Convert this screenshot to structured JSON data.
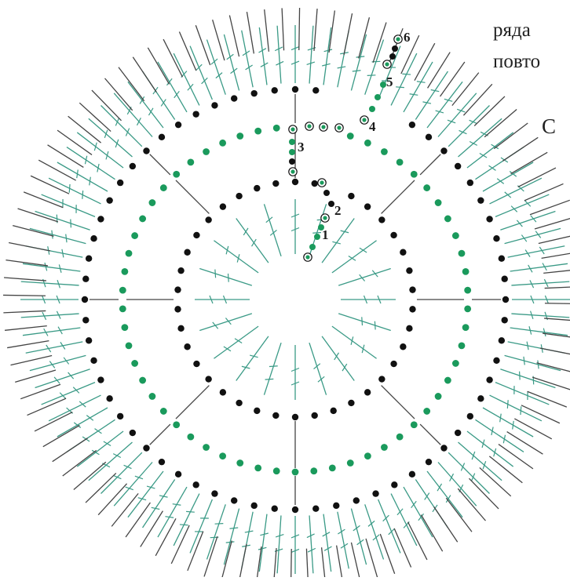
{
  "side_text": [
    "",
    "ряда",
    "повто",
    "С"
  ],
  "row_numbers": [
    "1",
    "2",
    "3",
    "4",
    "5",
    "6"
  ],
  "colors": {
    "black_stitch": "#111111",
    "green_stitch": "#1a9a5c",
    "teal_post": "#3a9a86",
    "dark_post": "#444444",
    "background": "#ffffff"
  },
  "diagram": {
    "description_icons": [
      "chain-dot",
      "single-crochet-post",
      "double-crochet-post",
      "slip-stitch-ring"
    ],
    "rounds": [
      {
        "round": "1",
        "stitch": "double-crochet",
        "color": "teal"
      },
      {
        "round": "2",
        "stitch": "chain",
        "color": "black"
      },
      {
        "round": "3",
        "stitch": "double-crochet",
        "color": "teal"
      },
      {
        "round": "3-chain",
        "stitch": "chain",
        "color": "green"
      },
      {
        "round": "4",
        "stitch": "chain",
        "color": "black"
      },
      {
        "round": "5",
        "stitch": "double-crochet",
        "color": "teal"
      },
      {
        "round": "6",
        "stitch": "post",
        "color": "black"
      }
    ]
  }
}
